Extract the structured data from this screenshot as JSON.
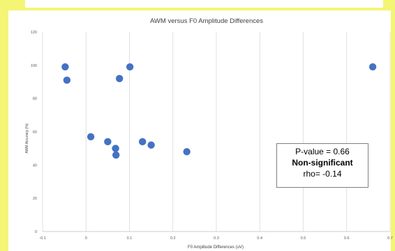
{
  "chart_data": {
    "type": "scatter",
    "title": "AWM versus F0 Amplitude Differences",
    "xlabel": "F0 Amplitude Differences (uV)",
    "ylabel": "AWM Accuracy (%)",
    "xlim": [
      -0.1,
      0.7
    ],
    "ylim": [
      0,
      120
    ],
    "x_ticks": [
      "-0.1",
      "0",
      "0.1",
      "0.2",
      "0.3",
      "0.4",
      "0.5",
      "0.6",
      "0.7"
    ],
    "y_ticks": [
      "0",
      "20",
      "40",
      "60",
      "80",
      "100",
      "120"
    ],
    "grid": "vertical",
    "marker_color": "#4472c4",
    "points": [
      {
        "x": -0.048,
        "y": 99
      },
      {
        "x": -0.044,
        "y": 91
      },
      {
        "x": 0.011,
        "y": 57
      },
      {
        "x": 0.05,
        "y": 54
      },
      {
        "x": 0.068,
        "y": 50
      },
      {
        "x": 0.069,
        "y": 46
      },
      {
        "x": 0.077,
        "y": 92
      },
      {
        "x": 0.101,
        "y": 99
      },
      {
        "x": 0.13,
        "y": 54
      },
      {
        "x": 0.15,
        "y": 52
      },
      {
        "x": 0.232,
        "y": 48
      },
      {
        "x": 0.66,
        "y": 99
      }
    ],
    "annotation": {
      "line1": "P-value = 0.66",
      "line2": "Non-significant",
      "line3": "rho= -0.14"
    }
  }
}
